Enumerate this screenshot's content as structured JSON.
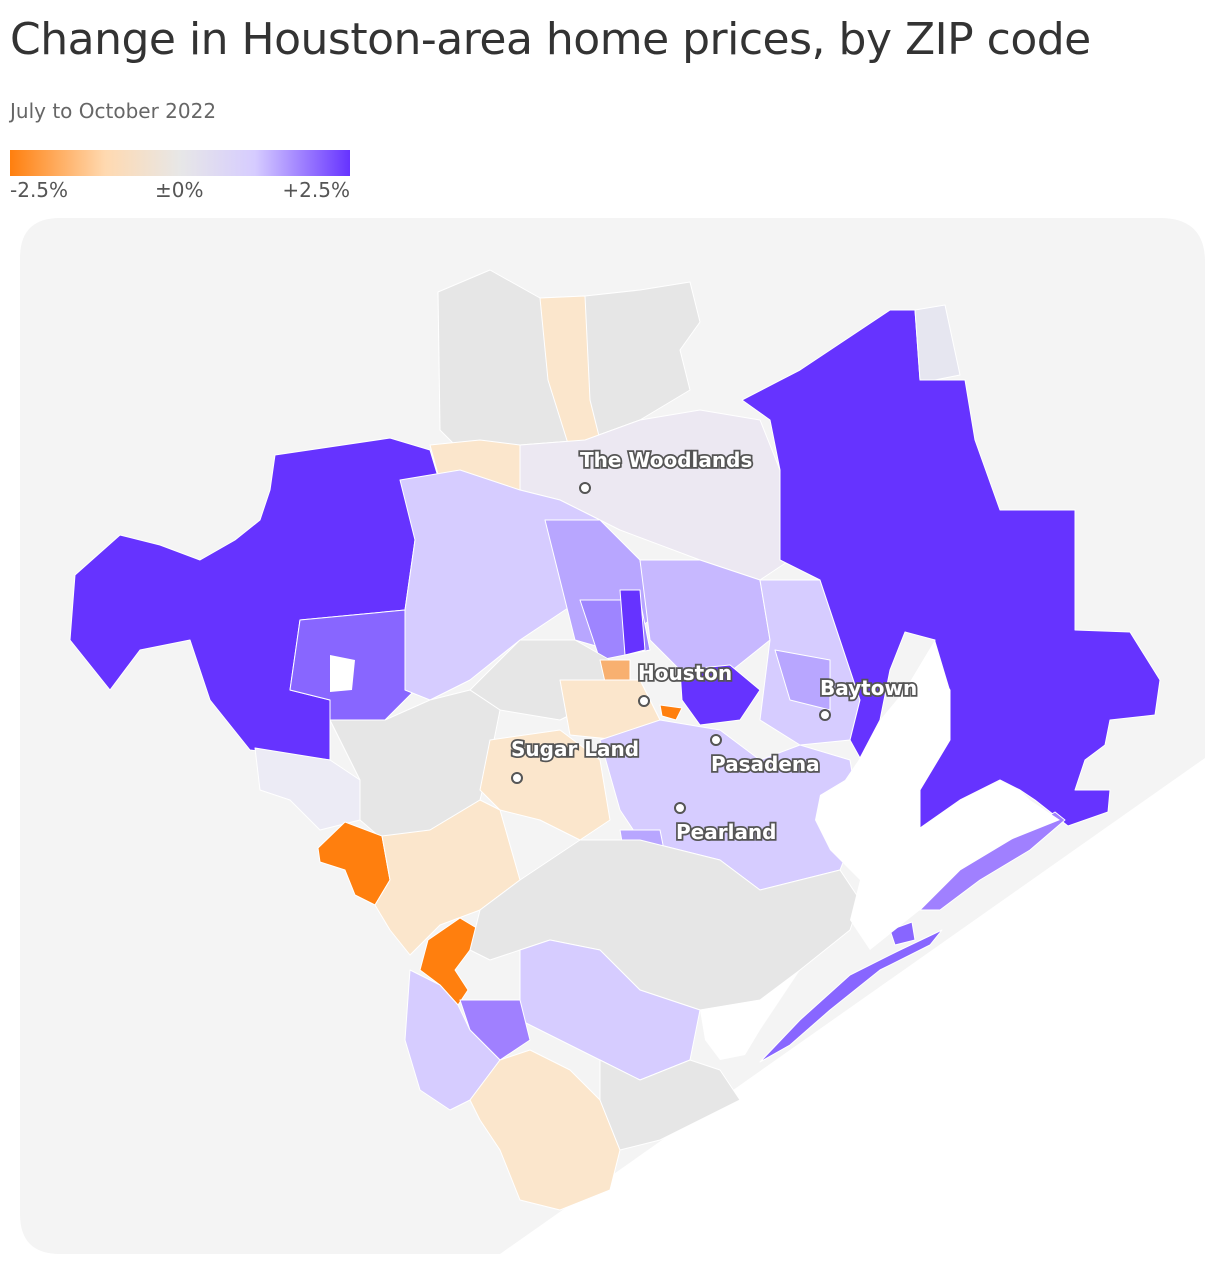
{
  "title": "Change in Houston-area home prices, by ZIP code",
  "subtitle": "July to October 2022",
  "legend": {
    "min_label": "-2.5%",
    "mid_label": "±0%",
    "max_label": "+2.5%",
    "colors": {
      "min": "#ff7f0e",
      "low": "#ffd9b0",
      "mid": "#e7e7e7",
      "high": "#d6ccff",
      "max": "#6633ff"
    }
  },
  "cities": [
    {
      "name": "The Woodlands"
    },
    {
      "name": "Houston"
    },
    {
      "name": "Baytown"
    },
    {
      "name": "Sugar Land"
    },
    {
      "name": "Pasadena"
    },
    {
      "name": "Pearland"
    }
  ]
}
